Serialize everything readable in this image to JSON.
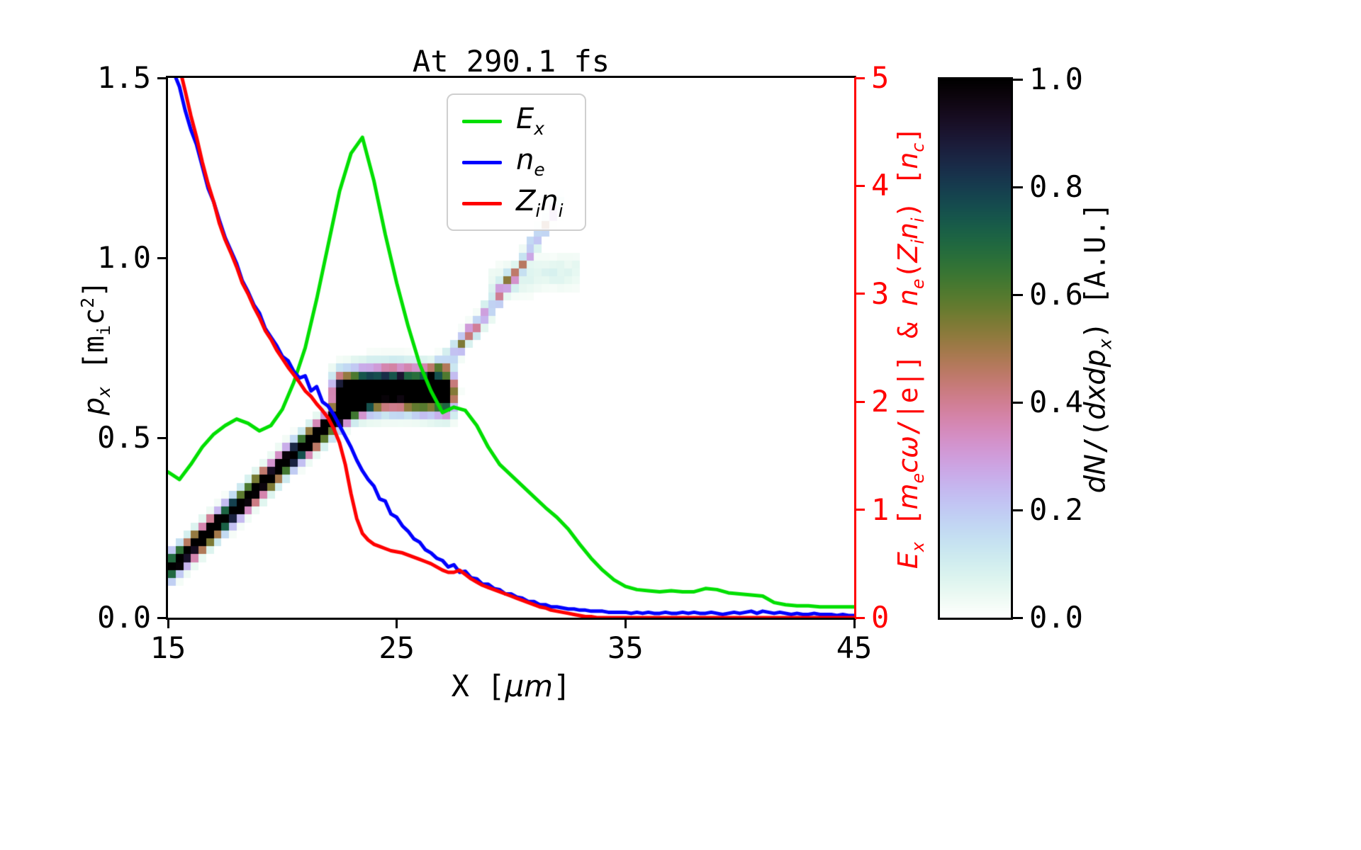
{
  "figure": {
    "title": "At 290.1 fs",
    "background": "#ffffff"
  },
  "labels": {
    "xlabel": [
      {
        "t": "X ["
      },
      {
        "t": "μm",
        "i": 1
      },
      {
        "t": "]"
      }
    ],
    "ylabel_left": [
      {
        "t": "p",
        "i": 1
      },
      {
        "t": "x",
        "i": 1,
        "sub": 1
      },
      {
        "t": " ["
      },
      {
        "t": "m"
      },
      {
        "t": "i",
        "sub": 1
      },
      {
        "t": "c"
      },
      {
        "t": "2",
        "sup": 1
      },
      {
        "t": "]"
      }
    ],
    "ylabel_right": [
      {
        "t": "E",
        "i": 1
      },
      {
        "t": "x",
        "i": 1,
        "sub": 1
      },
      {
        "t": " ["
      },
      {
        "t": "m",
        "i": 1
      },
      {
        "t": "e",
        "i": 1,
        "sub": 1
      },
      {
        "t": "c",
        "i": 1
      },
      {
        "t": "ω",
        "i": 1
      },
      {
        "t": "/|e|] & "
      },
      {
        "t": "n",
        "i": 1
      },
      {
        "t": "e",
        "i": 1,
        "sub": 1
      },
      {
        "t": "("
      },
      {
        "t": "Z",
        "i": 1
      },
      {
        "t": "i",
        "i": 1,
        "sub": 1
      },
      {
        "t": "n",
        "i": 1
      },
      {
        "t": "i",
        "i": 1,
        "sub": 1
      },
      {
        "t": ") ["
      },
      {
        "t": "n",
        "i": 1
      },
      {
        "t": "c",
        "i": 1,
        "sub": 1
      },
      {
        "t": "]"
      }
    ],
    "colorbar_label": [
      {
        "t": "dN",
        "i": 1
      },
      {
        "t": "/("
      },
      {
        "t": "dxdp",
        "i": 1
      },
      {
        "t": "x",
        "i": 1,
        "sub": 1
      },
      {
        "t": ") [A.U.]"
      }
    ]
  },
  "axes": {
    "x": {
      "ticks": [
        "15",
        "25",
        "35",
        "45"
      ],
      "color": "#000000"
    },
    "y_left": {
      "ticks": [
        "0.0",
        "0.5",
        "1.0",
        "1.5"
      ],
      "color": "#000000"
    },
    "y_right": {
      "ticks": [
        "0",
        "1",
        "2",
        "3",
        "4",
        "5"
      ],
      "color": "#ff0000"
    }
  },
  "legend": {
    "items": [
      {
        "name": "E_x",
        "color": "#00df00",
        "label": [
          {
            "t": "E",
            "i": 1
          },
          {
            "t": "x",
            "i": 1,
            "sub": 1
          }
        ]
      },
      {
        "name": "n_e",
        "color": "#0000ff",
        "label": [
          {
            "t": "n",
            "i": 1
          },
          {
            "t": "e",
            "i": 1,
            "sub": 1
          }
        ]
      },
      {
        "name": "Z_i n_i",
        "color": "#ff0000",
        "label": [
          {
            "t": "Z",
            "i": 1
          },
          {
            "t": "i",
            "i": 1,
            "sub": 1
          },
          {
            "t": "n",
            "i": 1
          },
          {
            "t": "i",
            "i": 1,
            "sub": 1
          }
        ]
      }
    ]
  },
  "colorbar": {
    "ticks": [
      "0.0",
      "0.2",
      "0.4",
      "0.6",
      "0.8",
      "1.0"
    ],
    "range": [
      0,
      1
    ],
    "colormap": "cubehelix_r",
    "stops": [
      [
        "0.0",
        "#ffffff"
      ],
      [
        "0.2",
        "#c2caf3"
      ],
      [
        "0.4",
        "#d07e93"
      ],
      [
        "0.6",
        "#54792f"
      ],
      [
        "0.8",
        "#163d4e"
      ],
      [
        "1.0",
        "#000000"
      ]
    ]
  },
  "chart_data": {
    "type": "heatmap+line",
    "title": "At 290.1 fs",
    "x_axis": {
      "label": "X [um]",
      "range": [
        15,
        45
      ],
      "ticks": [
        15,
        25,
        35,
        45
      ]
    },
    "y_left": {
      "label": "p_x [m_i c^2]",
      "range": [
        0,
        1.5
      ],
      "ticks": [
        0.0,
        0.5,
        1.0,
        1.5
      ]
    },
    "y_right": {
      "label": "E_x [m_e c w/|e|] & n_e(Z_i n_i) [n_c]",
      "range": [
        0,
        5
      ],
      "ticks": [
        0,
        1,
        2,
        3,
        4,
        5
      ],
      "color": "#ff0000"
    },
    "series": [
      {
        "name": "E_x",
        "axis": "right",
        "color": "#00df00",
        "x_start": 15,
        "dx": 0.5,
        "values": [
          1.35,
          1.28,
          1.42,
          1.58,
          1.7,
          1.78,
          1.84,
          1.8,
          1.73,
          1.78,
          1.93,
          2.18,
          2.5,
          2.95,
          3.45,
          3.95,
          4.3,
          4.45,
          4.05,
          3.55,
          3.1,
          2.7,
          2.35,
          2.1,
          1.9,
          1.95,
          1.92,
          1.78,
          1.58,
          1.42,
          1.32,
          1.22,
          1.12,
          1.02,
          0.93,
          0.82,
          0.68,
          0.55,
          0.44,
          0.35,
          0.29,
          0.26,
          0.25,
          0.24,
          0.25,
          0.24,
          0.24,
          0.27,
          0.26,
          0.23,
          0.22,
          0.21,
          0.2,
          0.14,
          0.12,
          0.11,
          0.11,
          0.1,
          0.1,
          0.1,
          0.1
        ]
      },
      {
        "name": "n_e",
        "axis": "right",
        "color": "#0000ff",
        "x_start": 15.25,
        "dx": 0.25,
        "values": [
          5.05,
          4.92,
          4.7,
          4.52,
          4.38,
          4.18,
          3.98,
          3.85,
          3.68,
          3.52,
          3.4,
          3.28,
          3.12,
          3.02,
          2.9,
          2.82,
          2.68,
          2.6,
          2.52,
          2.42,
          2.38,
          2.28,
          2.22,
          2.24,
          2.1,
          2.14,
          2.0,
          1.96,
          1.88,
          1.78,
          1.68,
          1.58,
          1.46,
          1.36,
          1.28,
          1.22,
          1.1,
          1.08,
          0.96,
          0.93,
          0.85,
          0.8,
          0.73,
          0.7,
          0.63,
          0.6,
          0.55,
          0.53,
          0.47,
          0.49,
          0.42,
          0.43,
          0.37,
          0.36,
          0.31,
          0.31,
          0.27,
          0.26,
          0.22,
          0.22,
          0.19,
          0.18,
          0.15,
          0.15,
          0.12,
          0.12,
          0.1,
          0.1,
          0.09,
          0.08,
          0.08,
          0.07,
          0.07,
          0.06,
          0.06,
          0.06,
          0.05,
          0.05,
          0.05,
          0.05,
          0.04,
          0.05,
          0.04,
          0.05,
          0.04,
          0.04,
          0.05,
          0.04,
          0.04,
          0.05,
          0.04,
          0.05,
          0.04,
          0.04,
          0.05,
          0.04,
          0.03,
          0.04,
          0.05,
          0.04,
          0.05,
          0.06,
          0.04,
          0.06,
          0.05,
          0.04,
          0.05,
          0.04,
          0.03,
          0.04,
          0.03,
          0.03,
          0.04,
          0.03,
          0.03,
          0.03,
          0.02,
          0.03,
          0.02,
          0.02
        ]
      },
      {
        "name": "Z_i n_i",
        "axis": "right",
        "color": "#ff0000",
        "x_start": 15.5,
        "dx": 0.25,
        "values": [
          5.1,
          4.88,
          4.65,
          4.45,
          4.22,
          4.02,
          3.85,
          3.65,
          3.5,
          3.38,
          3.25,
          3.1,
          3.0,
          2.88,
          2.78,
          2.66,
          2.58,
          2.48,
          2.4,
          2.32,
          2.25,
          2.18,
          2.1,
          2.05,
          1.98,
          1.92,
          1.85,
          1.75,
          1.62,
          1.42,
          1.15,
          0.92,
          0.78,
          0.72,
          0.68,
          0.66,
          0.64,
          0.62,
          0.61,
          0.6,
          0.58,
          0.56,
          0.54,
          0.52,
          0.5,
          0.47,
          0.44,
          0.42,
          0.42,
          0.44,
          0.4,
          0.36,
          0.33,
          0.3,
          0.28,
          0.26,
          0.24,
          0.22,
          0.2,
          0.18,
          0.16,
          0.14,
          0.12,
          0.1,
          0.09,
          0.07,
          0.06,
          0.05,
          0.04,
          0.03,
          0.02,
          0.01,
          0.01,
          0.0,
          0.0,
          0.0,
          0.0,
          0.0,
          0.0,
          0.0,
          0.0,
          0.0,
          0.0,
          0.0,
          0.0,
          0.0,
          0.0,
          0.0,
          0.0,
          0.0,
          0.0,
          0.0,
          0.0,
          0.0,
          0.0,
          0.0,
          0.0,
          0.0,
          0.0,
          0.0,
          0.0,
          0.0,
          0.0,
          0.0,
          0.0,
          0.0,
          0.0,
          0.0,
          0.0,
          0.0,
          0.0,
          0.0,
          0.0,
          0.0,
          0.0,
          0.0,
          0.0,
          0.0,
          0.0
        ]
      }
    ],
    "heatmap": {
      "value_label": "dN/(dxdp_x) [A.U.]",
      "range": [
        0,
        1
      ],
      "colormap": "cubehelix_r",
      "bands": [
        {
          "name": "main-diagonal",
          "intensity": 1.5,
          "width": 0.022,
          "speckle": 0.3,
          "points": [
            [
              15,
              0.135
            ],
            [
              16,
              0.19
            ],
            [
              17,
              0.25
            ],
            [
              18,
              0.305
            ],
            [
              19,
              0.365
            ],
            [
              20,
              0.425
            ],
            [
              21,
              0.48
            ],
            [
              22,
              0.535
            ],
            [
              23,
              0.59
            ],
            [
              23.9,
              0.625
            ]
          ]
        },
        {
          "name": "dense-blob",
          "intensity": 1.6,
          "width": 0.035,
          "speckle": 0.25,
          "points": [
            [
              22.5,
              0.618
            ],
            [
              23.5,
              0.632
            ],
            [
              24.5,
              0.637
            ],
            [
              25.5,
              0.636
            ],
            [
              26.4,
              0.63
            ],
            [
              27.2,
              0.626
            ]
          ]
        },
        {
          "name": "upper-diagonal",
          "intensity": 0.55,
          "width": 0.018,
          "speckle": 0.8,
          "points": [
            [
              26.4,
              0.665
            ],
            [
              27.2,
              0.71
            ],
            [
              28.2,
              0.79
            ],
            [
              29.2,
              0.87
            ],
            [
              30.2,
              0.96
            ],
            [
              31.2,
              1.06
            ],
            [
              31.9,
              1.14
            ]
          ]
        },
        {
          "name": "faint-smudge",
          "intensity": 0.09,
          "width": 0.03,
          "speckle": 0.5,
          "points": [
            [
              29.3,
              0.93
            ],
            [
              31,
              0.95
            ],
            [
              32.8,
              0.965
            ]
          ]
        }
      ]
    }
  }
}
